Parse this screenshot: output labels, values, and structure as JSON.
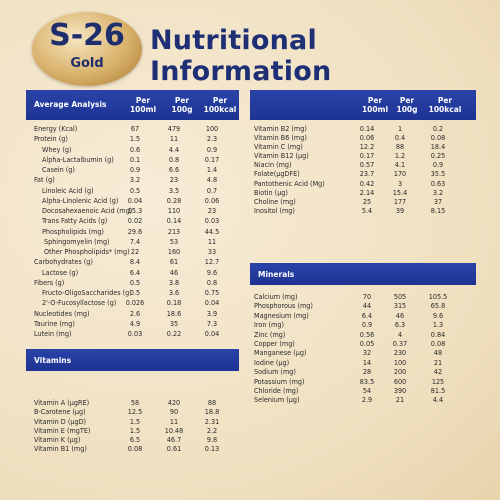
{
  "logo": {
    "brand": "S-26",
    "sub": "Gold"
  },
  "title": "Nutritional Information",
  "left_table": {
    "label": "Average Analysis",
    "columns": [
      {
        "a": "Per",
        "b": "100ml"
      },
      {
        "a": "Per",
        "b": "100g"
      },
      {
        "a": "Per",
        "b": "100kcal"
      }
    ],
    "rows": [
      {
        "name": "Energy (Kcal)",
        "v": [
          "67",
          "479",
          "100"
        ],
        "indent": 0
      },
      {
        "name": "Protein (g)",
        "v": [
          "1.5",
          "11",
          "2.3"
        ],
        "indent": 0
      },
      {
        "name": "Whey (g)",
        "v": [
          "0.6",
          "4.4",
          "0.9"
        ],
        "indent": 1
      },
      {
        "name": "Alpha-Lactalbumin (g)",
        "v": [
          "0.1",
          "0.8",
          "0.17"
        ],
        "indent": 1
      },
      {
        "name": "Casein (g)",
        "v": [
          "0.9",
          "6.6",
          "1.4"
        ],
        "indent": 1
      },
      {
        "name": "Fat (g)",
        "v": [
          "3.2",
          "23",
          "4.8"
        ],
        "indent": 0
      },
      {
        "name": "Linoleic Acid (g)",
        "v": [
          "0.5",
          "3.5",
          "0.7"
        ],
        "indent": 1
      },
      {
        "name": "Alpha-Linolenic Acid (g)",
        "v": [
          "0.04",
          "0.28",
          "0.06"
        ],
        "indent": 1
      },
      {
        "name": "Docosahexaenoic Acid (mg)",
        "v": [
          "15.3",
          "110",
          "23"
        ],
        "indent": 1
      },
      {
        "name": "Trans Fatty Acids (g)",
        "v": [
          "0.02",
          "0.14",
          "0.03"
        ],
        "indent": 1
      },
      {
        "name": "Phospholipids (mg)",
        "v": [
          "29.6",
          "213",
          "44.5"
        ],
        "indent": 1
      },
      {
        "name": "Sphingomyelin (mg)",
        "v": [
          "7.4",
          "53",
          "11"
        ],
        "indent": 2
      },
      {
        "name": "Other Phospholipids* (mg)",
        "v": [
          "22",
          "160",
          "33"
        ],
        "indent": 2
      },
      {
        "name": "Carbohydrates (g)",
        "v": [
          "8.4",
          "61",
          "12.7"
        ],
        "indent": 0
      },
      {
        "name": "Lactose (g)",
        "v": [
          "6.4",
          "46",
          "9.6"
        ],
        "indent": 1
      },
      {
        "name": "Fibers (g)",
        "v": [
          "0.5",
          "3.8",
          "0.8"
        ],
        "indent": 0
      },
      {
        "name": "Fructo-OligoSaccharides (g)",
        "v": [
          "0.5",
          "3.6",
          "0.75"
        ],
        "indent": 1
      },
      {
        "name": "2'-O-Fucosyllactose (g)",
        "v": [
          "0.026",
          "0.18",
          "0.04"
        ],
        "indent": 1
      },
      {
        "name": "Nucleotides (mg)",
        "v": [
          "2.6",
          "18.6",
          "3.9"
        ],
        "indent": 0
      },
      {
        "name": "Taurine (mg)",
        "v": [
          "4.9",
          "35",
          "7.3"
        ],
        "indent": 0
      },
      {
        "name": "Lutein (mg)",
        "v": [
          "0.03",
          "0.22",
          "0.04"
        ],
        "indent": 0
      }
    ]
  },
  "vitamins": {
    "label": "Vitamins",
    "rows": [
      {
        "name": "Vitamin A (µgRE)",
        "v": [
          "58",
          "420",
          "88"
        ]
      },
      {
        "name": "B-Carotene (µg)",
        "v": [
          "12.5",
          "90",
          "18.8"
        ]
      },
      {
        "name": "Vitamin D (µgD)",
        "v": [
          "1.5",
          "11",
          "2.31"
        ]
      },
      {
        "name": "Vitamin E (mgTE)",
        "v": [
          "1.5",
          "10.48",
          "2.2"
        ]
      },
      {
        "name": "Vitamin K (µg)",
        "v": [
          "6.5",
          "46.7",
          "9.8"
        ]
      },
      {
        "name": "Vitamin B1 (mg)",
        "v": [
          "0.08",
          "0.61",
          "0.13"
        ]
      }
    ]
  },
  "right_table": {
    "columns": [
      {
        "a": "Per",
        "b": "100ml"
      },
      {
        "a": "Per",
        "b": "100g"
      },
      {
        "a": "Per",
        "b": "100kcal"
      }
    ],
    "rows": [
      {
        "name": "Vitamin B2 (mg)",
        "v": [
          "0.14",
          "1",
          "0.2"
        ]
      },
      {
        "name": "Vitamin B6 (mg)",
        "v": [
          "0.06",
          "0.4",
          "0.08"
        ]
      },
      {
        "name": "Vitamin C (mg)",
        "v": [
          "12.2",
          "88",
          "18.4"
        ]
      },
      {
        "name": "Vitamin B12 (µg)",
        "v": [
          "0.17",
          "1.2",
          "0.25"
        ]
      },
      {
        "name": "Niacin (mg)",
        "v": [
          "0.57",
          "4.1",
          "0.9"
        ]
      },
      {
        "name": "Folate(µgDFE)",
        "v": [
          "23.7",
          "170",
          "35.5"
        ]
      },
      {
        "name": "Pantothenic Acid (Mg)",
        "v": [
          "0.42",
          "3",
          "0.63"
        ]
      },
      {
        "name": "Biotin (µg)",
        "v": [
          "2.14",
          "15.4",
          "3.2"
        ]
      },
      {
        "name": "Choline (mg)",
        "v": [
          "25",
          "177",
          "37"
        ]
      },
      {
        "name": "Inositol (mg)",
        "v": [
          "5.4",
          "39",
          "8.15"
        ]
      }
    ]
  },
  "minerals": {
    "label": "Minerals",
    "rows": [
      {
        "name": "Calcium (mg)",
        "v": [
          "70",
          "505",
          "105.5"
        ]
      },
      {
        "name": "Phosphorous (mg)",
        "v": [
          "44",
          "315",
          "65.8"
        ]
      },
      {
        "name": "Magnesium (mg)",
        "v": [
          "6.4",
          "46",
          "9.6"
        ]
      },
      {
        "name": "Iron (mg)",
        "v": [
          "0.9",
          "6.3",
          "1.3"
        ]
      },
      {
        "name": "Zinc (mg)",
        "v": [
          "0.56",
          "4",
          "0.84"
        ]
      },
      {
        "name": "Copper (mg)",
        "v": [
          "0.05",
          "0.37",
          "0.08"
        ]
      },
      {
        "name": "Manganese (µg)",
        "v": [
          "32",
          "230",
          "48"
        ]
      },
      {
        "name": "Iodine (µg)",
        "v": [
          "14",
          "100",
          "21"
        ]
      },
      {
        "name": "Sodium (mg)",
        "v": [
          "28",
          "200",
          "42"
        ]
      },
      {
        "name": "Potassium (mg)",
        "v": [
          "83.5",
          "600",
          "125"
        ]
      },
      {
        "name": "Chloride (mg)",
        "v": [
          "54",
          "390",
          "81.5"
        ]
      },
      {
        "name": "Selenium (µg)",
        "v": [
          "2.9",
          "21",
          "4.4"
        ]
      }
    ]
  },
  "colors": {
    "header_bg": "#2238a0",
    "title": "#1e2f75",
    "background": "#f1e3c6"
  }
}
